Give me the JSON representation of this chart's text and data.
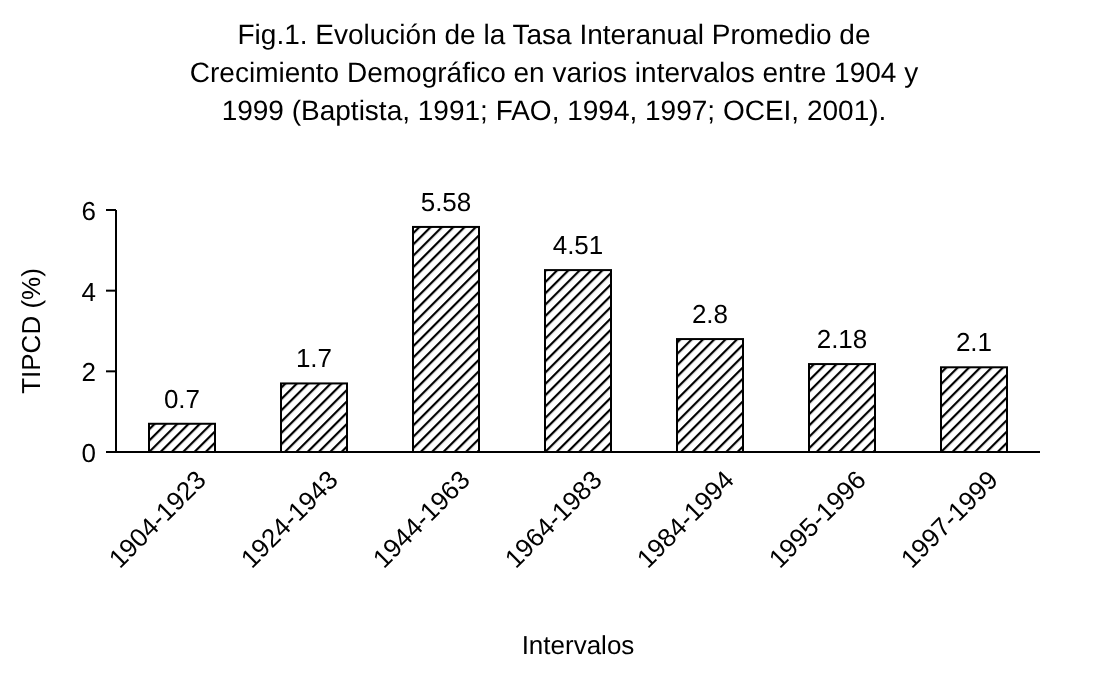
{
  "chart_data": {
    "type": "bar",
    "title": "Fig.1. Evolución de la Tasa Interanual Promedio de Crecimiento Demográfico en varios intervalos entre 1904 y 1999 (Baptista, 1991; FAO, 1994, 1997; OCEI, 2001).",
    "xlabel": "Intervalos",
    "ylabel": "TIPCD (%)",
    "categories": [
      "1904-1923",
      "1924-1943",
      "1944-1963",
      "1964-1983",
      "1984-1994",
      "1995-1996",
      "1997-1999"
    ],
    "values": [
      0.7,
      1.7,
      5.58,
      4.51,
      2.8,
      2.18,
      2.1
    ],
    "color": "#000000",
    "ylim": [
      0,
      6
    ],
    "yticks": [
      0,
      2,
      4,
      6
    ],
    "grid": false,
    "data_labels": true
  }
}
